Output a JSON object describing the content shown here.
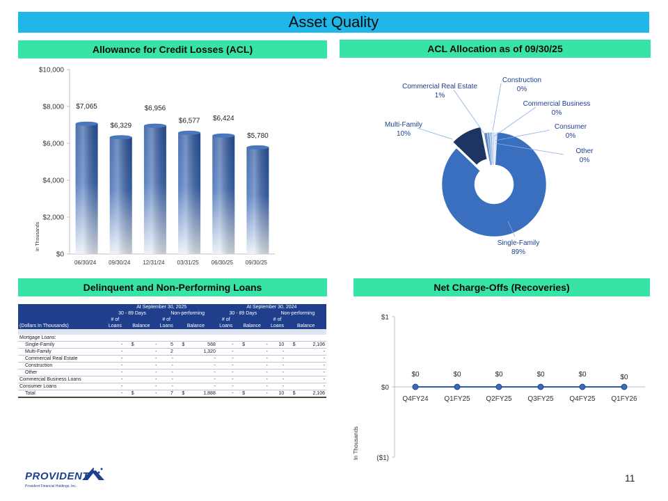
{
  "page": {
    "title": "Asset Quality",
    "page_number": "11"
  },
  "panels": {
    "acl": "Allowance for Credit Losses (ACL)",
    "allocation": "ACL Allocation as of 09/30/25",
    "delinquent": "Delinquent and Non-Performing Loans",
    "nco": "Net Charge-Offs (Recoveries)"
  },
  "logo": {
    "name": "PROVIDENT",
    "subtitle": "Provident Financial Holdings, Inc."
  },
  "chart_data": [
    {
      "type": "bar",
      "categories": [
        "06/30/24",
        "09/30/24",
        "12/31/24",
        "03/31/25",
        "06/30/25",
        "09/30/25"
      ],
      "values": [
        7065,
        6329,
        6956,
        6577,
        6424,
        5780
      ],
      "data_labels": [
        "$7,065",
        "$6,329",
        "$6,956",
        "$6,577",
        "$6,424",
        "$5,780"
      ],
      "ylabel": "In Thousands",
      "ylim": [
        0,
        10000
      ],
      "yticks": [
        0,
        2000,
        4000,
        6000,
        8000,
        10000
      ],
      "ytick_labels": [
        "$0",
        "$2,000",
        "$4,000",
        "$6,000",
        "$8,000",
        "$10,000"
      ],
      "grid": false,
      "color": "#2f5da8"
    },
    {
      "type": "pie",
      "labels": [
        "Single-Family",
        "Multi-Family",
        "Commercial Real Estate",
        "Construction",
        "Commercial Business",
        "Consumer",
        "Other"
      ],
      "values": [
        89,
        10,
        1,
        0,
        0,
        0,
        0
      ],
      "percent_labels": [
        "89%",
        "10%",
        "1%",
        "0%",
        "0%",
        "0%",
        "0%"
      ],
      "colors": [
        "#3a6fbf",
        "#1c3561",
        "#5b86c8",
        "#7ea5d9",
        "#a4c0e6",
        "#c9daf2",
        "#dde8f7"
      ]
    },
    {
      "type": "line",
      "categories": [
        "Q4FY24",
        "Q1FY25",
        "Q2FY25",
        "Q3FY25",
        "Q4FY25",
        "Q1FY26"
      ],
      "values": [
        0,
        0,
        0,
        0,
        0,
        0
      ],
      "data_labels": [
        "$0",
        "$0",
        "$0",
        "$0",
        "$0",
        "$0"
      ],
      "ylabel": "In Thousands",
      "ylim": [
        -1,
        1
      ],
      "yticks": [
        -1,
        0,
        1
      ],
      "ytick_labels": [
        "($1)",
        "$0",
        "$1"
      ],
      "color": "#2f5da8"
    }
  ],
  "table": {
    "group_headers": [
      "At September 30, 2025",
      "At September 30, 2024"
    ],
    "sub_headers": [
      "30 - 89 Days",
      "Non-performing",
      "30 - 89 Days",
      "Non-performing"
    ],
    "col_header_top": "# of",
    "col_headers": [
      "Loans",
      "Balance"
    ],
    "row_header_label": "(Dollars In Thousands)",
    "section_label": "Mortgage Loans:",
    "rows": [
      {
        "label": "Single-Family",
        "indent": true,
        "cells": [
          "-",
          "$",
          "-",
          "5",
          "$",
          "568",
          "-",
          "$",
          "-",
          "10",
          "$",
          "2,106"
        ]
      },
      {
        "label": "Multi-Family",
        "indent": true,
        "cells": [
          "-",
          "",
          "-",
          "2",
          "",
          "1,320",
          "-",
          "",
          "-",
          "-",
          "",
          "-"
        ]
      },
      {
        "label": "Commercial Real Estate",
        "indent": true,
        "cells": [
          "-",
          "",
          "-",
          "-",
          "",
          "-",
          "-",
          "",
          "-",
          "-",
          "",
          "-"
        ]
      },
      {
        "label": "Construction",
        "indent": true,
        "cells": [
          "-",
          "",
          "-",
          "-",
          "",
          "-",
          "-",
          "",
          "-",
          "-",
          "",
          "-"
        ]
      },
      {
        "label": "Other",
        "indent": true,
        "cells": [
          "-",
          "",
          "-",
          "-",
          "",
          "-",
          "-",
          "",
          "-",
          "-",
          "",
          "-"
        ]
      },
      {
        "label": "Commercial Business Loans",
        "indent": false,
        "cells": [
          "-",
          "",
          "-",
          "-",
          "",
          "-",
          "-",
          "",
          "-",
          "-",
          "",
          "-"
        ]
      },
      {
        "label": "Consumer Loans",
        "indent": false,
        "cells": [
          "-",
          "",
          "-",
          "-",
          "",
          "-",
          "-",
          "",
          "-",
          "-",
          "",
          "-"
        ]
      }
    ],
    "total": {
      "label": "Total",
      "cells": [
        "-",
        "$",
        "-",
        "7",
        "$",
        "1,888",
        "-",
        "$",
        "-",
        "10",
        "$",
        "2,106"
      ]
    }
  }
}
